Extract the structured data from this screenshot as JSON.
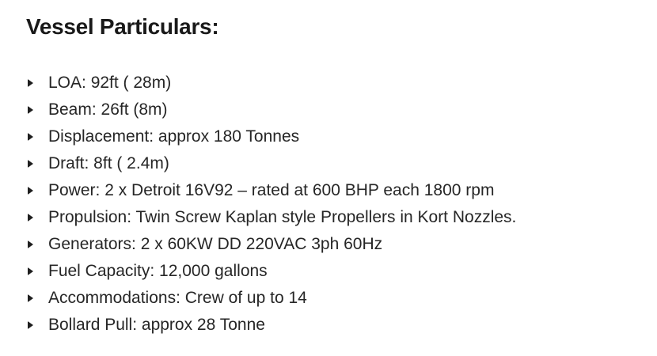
{
  "page": {
    "title": "Vessel Particulars:"
  },
  "particulars": {
    "items": [
      "LOA: 92ft ( 28m)",
      "Beam: 26ft (8m)",
      "Displacement: approx 180 Tonnes",
      "Draft: 8ft ( 2.4m)",
      "Power: 2 x Detroit 16V92 – rated at 600 BHP each 1800 rpm",
      "Propulsion: Twin Screw Kaplan style Propellers in Kort Nozzles.",
      "Generators: 2 x 60KW DD 220VAC 3ph 60Hz",
      "Fuel Capacity: 12,000 gallons",
      "Accommodations: Crew of up to 14",
      "Bollard Pull: approx 28 Tonne"
    ]
  },
  "colors": {
    "background": "#ffffff",
    "heading_text": "#191919",
    "body_text": "#262626",
    "bullet": "#1f1f1f"
  }
}
